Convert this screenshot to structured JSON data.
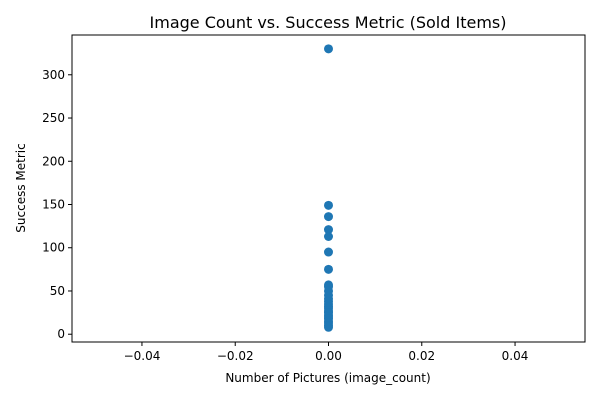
{
  "chart_data": {
    "type": "scatter",
    "title": "Image Count vs. Success Metric (Sold Items)",
    "xlabel": "Number of Pictures (image_count)",
    "ylabel": "Success Metric",
    "xlim": [
      -0.055,
      0.055
    ],
    "ylim": [
      -9,
      346
    ],
    "xticks": [
      -0.04,
      -0.02,
      0.0,
      0.02,
      0.04
    ],
    "xtick_labels": [
      "−0.04",
      "−0.02",
      "0.00",
      "0.02",
      "0.04"
    ],
    "yticks": [
      0,
      50,
      100,
      150,
      200,
      250,
      300
    ],
    "ytick_labels": [
      "0",
      "50",
      "100",
      "150",
      "200",
      "250",
      "300"
    ],
    "grid": false,
    "legend": "none",
    "series": [
      {
        "color": "#1f77b4",
        "points": [
          {
            "x": 0,
            "y": 330
          },
          {
            "x": 0,
            "y": 149
          },
          {
            "x": 0,
            "y": 136
          },
          {
            "x": 0,
            "y": 121
          },
          {
            "x": 0,
            "y": 113
          },
          {
            "x": 0,
            "y": 95
          },
          {
            "x": 0,
            "y": 75
          },
          {
            "x": 0,
            "y": 57
          },
          {
            "x": 0,
            "y": 55
          },
          {
            "x": 0,
            "y": 50
          },
          {
            "x": 0,
            "y": 45
          },
          {
            "x": 0,
            "y": 41
          },
          {
            "x": 0,
            "y": 38
          },
          {
            "x": 0,
            "y": 35
          },
          {
            "x": 0,
            "y": 32
          },
          {
            "x": 0,
            "y": 30
          },
          {
            "x": 0,
            "y": 27
          },
          {
            "x": 0,
            "y": 25
          },
          {
            "x": 0,
            "y": 22
          },
          {
            "x": 0,
            "y": 20
          },
          {
            "x": 0,
            "y": 18
          },
          {
            "x": 0,
            "y": 15
          },
          {
            "x": 0,
            "y": 13
          },
          {
            "x": 0,
            "y": 10
          },
          {
            "x": 0,
            "y": 8
          }
        ]
      }
    ]
  }
}
